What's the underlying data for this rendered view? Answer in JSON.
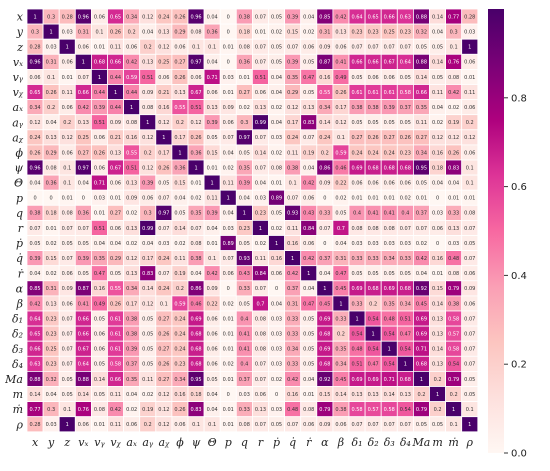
{
  "chart_data": {
    "type": "heatmap",
    "title": "",
    "xlabel": "",
    "ylabel": "",
    "variables": [
      "x",
      "y",
      "z",
      "vₓ",
      "vᵧ",
      "vᵪ",
      "aₓ",
      "aᵧ",
      "aᵪ",
      "ϕ",
      "ψ",
      "Θ",
      "p",
      "q",
      "r",
      "ṗ",
      "q̇",
      "ṙ",
      "α",
      "β",
      "δ₁",
      "δ₂",
      "δ₃",
      "δ₄",
      "Ma",
      "m",
      "ṁ",
      "ρ"
    ],
    "values": [
      [
        1,
        0.3,
        0.28,
        0.96,
        0.06,
        0.65,
        0.34,
        0.12,
        0.24,
        0.26,
        0.96,
        0.04,
        0,
        0.38,
        0.07,
        0.05,
        0.39,
        0.04,
        0.85,
        0.42,
        0.64,
        0.65,
        0.66,
        0.63,
        0.88,
        0.14,
        0.77,
        0.28
      ],
      [
        0.3,
        1,
        0.03,
        0.31,
        0.1,
        0.26,
        0.2,
        0.04,
        0.13,
        0.29,
        0.08,
        0.36,
        0,
        0.18,
        0.01,
        0.02,
        0.15,
        0.02,
        0.31,
        0.13,
        0.23,
        0.23,
        0.25,
        0.23,
        0.32,
        0.04,
        0.3,
        0.03
      ],
      [
        0.28,
        0.03,
        1,
        0.06,
        0.01,
        0.11,
        0.06,
        0.2,
        0.12,
        0.06,
        0.1,
        0.1,
        0.01,
        0.08,
        0.07,
        0.05,
        0.07,
        0.06,
        0.09,
        0.06,
        0.07,
        0.07,
        0.07,
        0.07,
        0.05,
        0.05,
        0.1,
        1
      ],
      [
        0.96,
        0.31,
        0.06,
        1,
        0.68,
        0.66,
        0.42,
        0.13,
        0.25,
        0.27,
        0.97,
        0.04,
        0,
        0.36,
        0.07,
        0.05,
        0.39,
        0.05,
        0.87,
        0.41,
        0.66,
        0.66,
        0.67,
        0.64,
        0.88,
        0.14,
        0.76,
        0.06
      ],
      [
        0.06,
        0.1,
        0.01,
        0.07,
        1,
        0.44,
        0.59,
        0.51,
        0.06,
        0.26,
        0.06,
        0.71,
        0.03,
        0.01,
        0.51,
        0.04,
        0.35,
        0.47,
        0.16,
        0.49,
        0.05,
        0.06,
        0.06,
        0.05,
        0.14,
        0.05,
        0.08,
        0.01
      ],
      [
        0.65,
        0.26,
        0.11,
        0.66,
        0.44,
        1,
        0.44,
        0.09,
        0.21,
        0.13,
        0.67,
        0.06,
        0.01,
        0.27,
        0.06,
        0.04,
        0.29,
        0.05,
        0.55,
        0.26,
        0.61,
        0.61,
        0.61,
        0.58,
        0.66,
        0.11,
        0.42,
        0.11
      ],
      [
        0.34,
        0.2,
        0.06,
        0.42,
        0.39,
        0.44,
        1,
        0.08,
        0.16,
        0.55,
        0.51,
        0.13,
        0.09,
        0.02,
        0.13,
        0.02,
        0.12,
        0.13,
        0.34,
        0.17,
        0.38,
        0.38,
        0.39,
        0.37,
        0.35,
        0.04,
        0.02,
        0.06
      ],
      [
        0.12,
        0.04,
        0.2,
        0.13,
        0.51,
        0.09,
        0.08,
        1,
        0.12,
        0.2,
        0.12,
        0.39,
        0.06,
        0.3,
        0.99,
        0.04,
        0.17,
        0.83,
        0.14,
        0.12,
        0.05,
        0.05,
        0.05,
        0.05,
        0.11,
        0.02,
        0.19,
        0.2
      ],
      [
        0.24,
        0.13,
        0.12,
        0.25,
        0.06,
        0.21,
        0.16,
        0.12,
        1,
        0.17,
        0.26,
        0.05,
        0.07,
        0.97,
        0.07,
        0.03,
        0.24,
        0.07,
        0.24,
        0.1,
        0.27,
        0.26,
        0.27,
        0.26,
        0.27,
        0.12,
        0.12,
        0.12
      ],
      [
        0.26,
        0.29,
        0.06,
        0.27,
        0.26,
        0.13,
        0.55,
        0.2,
        0.17,
        1,
        0.36,
        0.15,
        0.04,
        0.05,
        0.14,
        0.02,
        0.11,
        0.19,
        0.2,
        0.59,
        0.24,
        0.24,
        0.24,
        0.23,
        0.34,
        0.16,
        0.26,
        0.06
      ],
      [
        0.96,
        0.08,
        0.1,
        0.97,
        0.06,
        0.67,
        0.51,
        0.12,
        0.26,
        0.36,
        1,
        0.01,
        0.02,
        0.35,
        0.07,
        0.08,
        0.38,
        0.04,
        0.86,
        0.46,
        0.69,
        0.68,
        0.68,
        0.68,
        0.95,
        0.18,
        0.83,
        0.1
      ],
      [
        0.04,
        0.36,
        0.1,
        0.04,
        0.71,
        0.06,
        0.13,
        0.39,
        0.05,
        0.15,
        0.01,
        1,
        0.11,
        0.39,
        0.04,
        0.01,
        0.1,
        0.42,
        0.09,
        0.22,
        0.06,
        0.06,
        0.06,
        0.06,
        0.05,
        0.04,
        0.04,
        0.1
      ],
      [
        0,
        0,
        0.01,
        0,
        0.03,
        0.01,
        0.09,
        0.06,
        0.07,
        0.04,
        0.02,
        0.11,
        1,
        0.04,
        0.03,
        0.89,
        0.07,
        0.06,
        0,
        0.02,
        0.01,
        0.01,
        0.01,
        0.02,
        0.01,
        0,
        0.01,
        0.01
      ],
      [
        0.38,
        0.18,
        0.08,
        0.36,
        0.01,
        0.27,
        0.02,
        0.3,
        0.97,
        0.05,
        0.35,
        0.39,
        0.04,
        1,
        0.23,
        0.05,
        0.93,
        0.43,
        0.33,
        0.05,
        0.4,
        0.41,
        0.41,
        0.4,
        0.37,
        0.03,
        0.33,
        0.08
      ],
      [
        0.07,
        0.01,
        0.07,
        0.07,
        0.51,
        0.06,
        0.13,
        0.99,
        0.07,
        0.14,
        0.07,
        0.04,
        0.03,
        0.23,
        1,
        0.02,
        0.11,
        0.84,
        0.07,
        0.7,
        0.08,
        0.08,
        0.08,
        0.07,
        0.07,
        0.06,
        0.13,
        0.07
      ],
      [
        0.05,
        0.02,
        0.05,
        0.05,
        0.04,
        0.04,
        0.02,
        0.04,
        0.03,
        0.02,
        0.08,
        0.01,
        0.89,
        0.05,
        0.02,
        1,
        0.16,
        0.06,
        0,
        0.04,
        0.03,
        0.03,
        0.03,
        0.03,
        0.02,
        0,
        0.03,
        0.05
      ],
      [
        0.39,
        0.15,
        0.07,
        0.39,
        0.35,
        0.29,
        0.12,
        0.17,
        0.24,
        0.11,
        0.38,
        0.1,
        0.07,
        0.93,
        0.11,
        0.16,
        1,
        0.42,
        0.37,
        0.31,
        0.33,
        0.33,
        0.34,
        0.33,
        0.42,
        0.16,
        0.48,
        0.07
      ],
      [
        0.04,
        0.02,
        0.06,
        0.05,
        0.47,
        0.05,
        0.13,
        0.83,
        0.07,
        0.19,
        0.04,
        0.42,
        0.06,
        0.43,
        0.84,
        0.06,
        0.42,
        1,
        0.04,
        0.47,
        0.05,
        0.05,
        0.05,
        0.05,
        0.04,
        0.01,
        0.08,
        0.06
      ],
      [
        0.85,
        0.31,
        0.09,
        0.87,
        0.16,
        0.55,
        0.34,
        0.14,
        0.24,
        0.2,
        0.86,
        0.09,
        0,
        0.33,
        0.07,
        0,
        0.37,
        0.04,
        1,
        0.45,
        0.69,
        0.68,
        0.69,
        0.68,
        0.92,
        0.15,
        0.79,
        0.09
      ],
      [
        0.42,
        0.13,
        0.06,
        0.41,
        0.49,
        0.26,
        0.17,
        0.12,
        0.1,
        0.59,
        0.46,
        0.22,
        0.02,
        0.05,
        0.7,
        0.04,
        0.31,
        0.47,
        0.45,
        1,
        0.33,
        0.2,
        0.35,
        0.34,
        0.45,
        0.14,
        0.38,
        0.06
      ],
      [
        0.64,
        0.23,
        0.07,
        0.66,
        0.05,
        0.61,
        0.38,
        0.05,
        0.27,
        0.24,
        0.69,
        0.06,
        0.01,
        0.4,
        0.08,
        0.03,
        0.33,
        0.05,
        0.69,
        0.33,
        1,
        0.54,
        0.48,
        0.51,
        0.69,
        0.13,
        0.58,
        0.07
      ],
      [
        0.65,
        0.23,
        0.07,
        0.66,
        0.06,
        0.61,
        0.38,
        0.05,
        0.26,
        0.24,
        0.68,
        0.06,
        0.01,
        0.41,
        0.08,
        0.03,
        0.33,
        0.05,
        0.68,
        0.2,
        0.54,
        1,
        0.54,
        0.47,
        0.69,
        0.13,
        0.57,
        0.07
      ],
      [
        0.66,
        0.25,
        0.07,
        0.67,
        0.06,
        0.61,
        0.39,
        0.05,
        0.27,
        0.24,
        0.68,
        0.06,
        0.01,
        0.41,
        0.08,
        0.03,
        0.34,
        0.05,
        0.69,
        0.35,
        0.48,
        0.54,
        1,
        0.54,
        0.71,
        0.14,
        0.58,
        0.07
      ],
      [
        0.63,
        0.23,
        0.07,
        0.64,
        0.05,
        0.58,
        0.37,
        0.05,
        0.26,
        0.23,
        0.68,
        0.06,
        0.02,
        0.4,
        0.07,
        0.03,
        0.33,
        0.05,
        0.68,
        0.34,
        0.51,
        0.47,
        0.54,
        1,
        0.68,
        0.13,
        0.54,
        0.07
      ],
      [
        0.88,
        0.32,
        0.05,
        0.88,
        0.14,
        0.66,
        0.35,
        0.11,
        0.27,
        0.34,
        0.95,
        0.05,
        0.01,
        0.37,
        0.07,
        0.02,
        0.42,
        0.04,
        0.92,
        0.45,
        0.69,
        0.69,
        0.71,
        0.68,
        1,
        0.2,
        0.79,
        0.05
      ],
      [
        0.14,
        0.04,
        0.05,
        0.14,
        0.05,
        0.11,
        0.04,
        0.02,
        0.12,
        0.16,
        0.18,
        0.04,
        0,
        0.03,
        0.06,
        0,
        0.16,
        0.01,
        0.15,
        0.14,
        0.13,
        0.13,
        0.14,
        0.13,
        0.2,
        1,
        0.2,
        0.05
      ],
      [
        0.77,
        0.3,
        0.1,
        0.76,
        0.08,
        0.42,
        0.02,
        0.19,
        0.12,
        0.26,
        0.83,
        0.04,
        0.01,
        0.33,
        0.13,
        0.03,
        0.48,
        0.08,
        0.79,
        0.38,
        0.58,
        0.57,
        0.58,
        0.54,
        0.79,
        0.2,
        1,
        0.1
      ],
      [
        0.28,
        0.03,
        1,
        0.06,
        0.01,
        0.11,
        0.06,
        0.2,
        0.12,
        0.06,
        0.1,
        0.1,
        0.01,
        0.08,
        0.07,
        0.05,
        0.07,
        0.06,
        0.09,
        0.06,
        0.07,
        0.07,
        0.07,
        0.07,
        0.05,
        0.05,
        0.1,
        1
      ]
    ],
    "value_range": [
      0.0,
      1.0
    ],
    "colormap": [
      "#fff7f3",
      "#fde0dd",
      "#fcc5c0",
      "#fa9fb5",
      "#f768a1",
      "#dd3497",
      "#ae017e",
      "#7a0177",
      "#49006a"
    ],
    "colorbar": {
      "ticks": [
        0.0,
        0.2,
        0.4,
        0.6,
        0.8
      ],
      "tick_labels": [
        "0.0",
        "0.2",
        "0.4",
        "0.6",
        "0.8"
      ]
    },
    "annotations_shown": true,
    "grid": true,
    "grid_color": "#ffffff",
    "legend": "colorbar-right"
  }
}
